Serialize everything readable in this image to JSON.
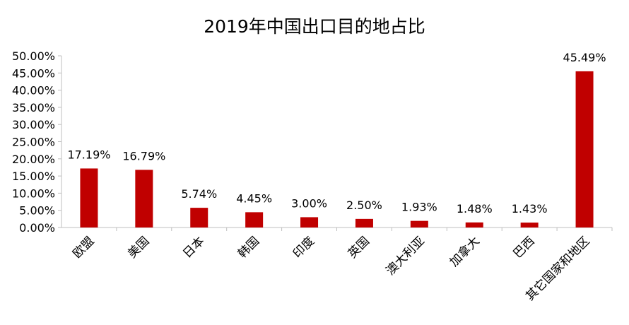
{
  "chart_data": {
    "type": "bar",
    "title": "2019年中国出口目的地占比",
    "categories": [
      "欧盟",
      "美国",
      "日本",
      "韩国",
      "印度",
      "英国",
      "澳大利亚",
      "加拿大",
      "巴西",
      "其它国家和地区"
    ],
    "values": [
      17.19,
      16.79,
      5.74,
      4.45,
      3.0,
      2.5,
      1.93,
      1.48,
      1.43,
      45.49
    ],
    "data_labels": [
      "17.19%",
      "16.79%",
      "5.74%",
      "4.45%",
      "3.00%",
      "2.50%",
      "1.93%",
      "1.48%",
      "1.43%",
      "45.49%"
    ],
    "y_ticks": [
      0,
      5,
      10,
      15,
      20,
      25,
      30,
      35,
      40,
      45,
      50
    ],
    "y_tick_labels": [
      "0.00%",
      "5.00%",
      "10.00%",
      "15.00%",
      "20.00%",
      "25.00%",
      "30.00%",
      "35.00%",
      "40.00%",
      "45.00%",
      "50.00%"
    ],
    "ylim": [
      0,
      50
    ],
    "xlabel": "",
    "ylabel": "",
    "grid": false,
    "legend": "none",
    "bar_color": "#C00000"
  }
}
